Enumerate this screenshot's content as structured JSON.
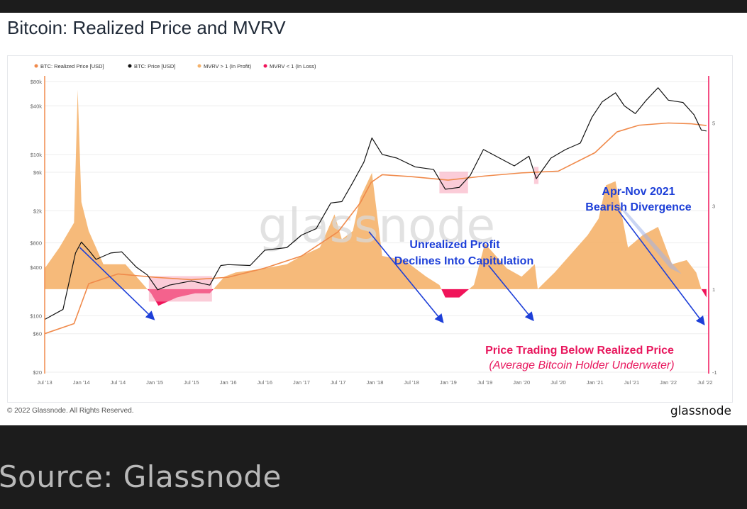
{
  "chart_data": {
    "type": "line",
    "title": "Bitcoin: Realized Price and MVRV",
    "legend": [
      {
        "name": "BTC: Realized Price [USD]",
        "color": "#f08a4b"
      },
      {
        "name": "BTC: Price [USD]",
        "color": "#111111"
      },
      {
        "name": "MVRV > 1 (In Profit)",
        "color": "#f5b26b"
      },
      {
        "name": "MVRV < 1 (In Loss)",
        "color": "#f0145a"
      }
    ],
    "legend_position": "top-left",
    "y_left_scale": "log",
    "y_left_ticks": [
      "$20",
      "$60",
      "$100",
      "$400",
      "$800",
      "$2k",
      "$6k",
      "$10k",
      "$40k",
      "$80k"
    ],
    "y_left_tick_values": [
      20,
      60,
      100,
      400,
      800,
      2000,
      6000,
      10000,
      40000,
      80000
    ],
    "y_right_ticks": [
      "-1",
      "1",
      "3",
      "5"
    ],
    "y_right_tick_values": [
      -1,
      1,
      3,
      5
    ],
    "y_right_range": [
      -1,
      6
    ],
    "x_ticks": [
      "Jul '13",
      "Jan '14",
      "Jul '14",
      "Jan '15",
      "Jul '15",
      "Jan '16",
      "Jul '16",
      "Jan '17",
      "Jul '17",
      "Jan '18",
      "Jul '18",
      "Jan '19",
      "Jul '19",
      "Jan '20",
      "Jul '20",
      "Jan '21",
      "Jul '21",
      "Jan '22",
      "Jul '22"
    ],
    "x_tick_values": [
      2013.5,
      2014.0,
      2014.5,
      2015.0,
      2015.5,
      2016.0,
      2016.5,
      2017.0,
      2017.5,
      2018.0,
      2018.5,
      2019.0,
      2019.5,
      2020.0,
      2020.5,
      2021.0,
      2021.5,
      2022.0,
      2022.5
    ],
    "x_range": [
      2013.5,
      2022.55
    ],
    "grid": true,
    "series": [
      {
        "name": "BTC: Price [USD]",
        "x": [
          2013.5,
          2013.75,
          2013.92,
          2014.0,
          2014.1,
          2014.2,
          2014.4,
          2014.55,
          2014.75,
          2014.9,
          2015.04,
          2015.2,
          2015.5,
          2015.75,
          2015.9,
          2016.0,
          2016.3,
          2016.5,
          2016.8,
          2017.0,
          2017.2,
          2017.4,
          2017.55,
          2017.7,
          2017.85,
          2017.96,
          2018.1,
          2018.3,
          2018.55,
          2018.8,
          2018.96,
          2019.15,
          2019.3,
          2019.48,
          2019.7,
          2019.9,
          2020.1,
          2020.2,
          2020.4,
          2020.6,
          2020.8,
          2020.96,
          2021.1,
          2021.28,
          2021.4,
          2021.55,
          2021.7,
          2021.86,
          2022.0,
          2022.2,
          2022.35,
          2022.45,
          2022.52
        ],
        "y": [
          90,
          120,
          600,
          820,
          650,
          500,
          600,
          620,
          400,
          320,
          210,
          240,
          270,
          240,
          420,
          430,
          420,
          650,
          700,
          1000,
          1200,
          2500,
          2600,
          4500,
          8000,
          16000,
          10000,
          9000,
          7000,
          6500,
          3700,
          3900,
          5500,
          11500,
          9000,
          7200,
          9500,
          5000,
          9000,
          11500,
          13800,
          29000,
          45000,
          58000,
          40000,
          32000,
          47000,
          67000,
          47000,
          44000,
          31000,
          20000,
          19500
        ]
      },
      {
        "name": "BTC: Realized Price [USD]",
        "x": [
          2013.5,
          2013.9,
          2014.1,
          2014.5,
          2015.0,
          2015.5,
          2016.0,
          2016.5,
          2017.0,
          2017.5,
          2017.8,
          2017.95,
          2018.1,
          2018.5,
          2019.0,
          2019.5,
          2020.0,
          2020.5,
          2021.0,
          2021.3,
          2021.6,
          2022.0,
          2022.3,
          2022.52
        ],
        "y": [
          60,
          80,
          250,
          330,
          300,
          280,
          300,
          390,
          550,
          1100,
          2500,
          4500,
          5600,
          5300,
          4800,
          5400,
          5900,
          6200,
          10500,
          19000,
          23000,
          24500,
          24000,
          22800
        ]
      },
      {
        "name": "MVRV",
        "x": [
          2013.5,
          2013.7,
          2013.9,
          2013.95,
          2014.0,
          2014.1,
          2014.3,
          2014.6,
          2014.8,
          2014.95,
          2015.05,
          2015.3,
          2015.55,
          2015.75,
          2015.95,
          2016.1,
          2016.5,
          2016.8,
          2017.0,
          2017.25,
          2017.45,
          2017.55,
          2017.7,
          2017.8,
          2017.96,
          2018.1,
          2018.4,
          2018.7,
          2018.88,
          2018.96,
          2019.15,
          2019.35,
          2019.5,
          2019.65,
          2019.8,
          2020.0,
          2020.18,
          2020.22,
          2020.45,
          2020.7,
          2020.9,
          2021.05,
          2021.15,
          2021.28,
          2021.45,
          2021.65,
          2021.86,
          2022.05,
          2022.25,
          2022.38,
          2022.45,
          2022.52
        ],
        "y": [
          1.5,
          2.0,
          2.6,
          5.8,
          3.1,
          2.4,
          1.6,
          1.6,
          1.2,
          0.9,
          0.6,
          0.8,
          0.9,
          0.9,
          1.3,
          1.4,
          1.5,
          1.6,
          1.8,
          2.0,
          2.8,
          2.2,
          2.4,
          3.2,
          3.8,
          1.8,
          1.7,
          1.3,
          1.1,
          0.8,
          0.8,
          1.1,
          2.1,
          1.8,
          1.5,
          1.3,
          1.6,
          1.0,
          1.4,
          1.9,
          2.3,
          2.7,
          3.5,
          3.6,
          2.0,
          2.3,
          2.5,
          1.6,
          1.7,
          1.4,
          1.0,
          0.8
        ]
      }
    ],
    "annotations": [
      {
        "text": "Unrealized Profit",
        "color": "#1d3fd8"
      },
      {
        "text": "Declines Into Capitulation",
        "color": "#1d3fd8"
      },
      {
        "text": "Apr-Nov 2021",
        "color": "#1d3fd8"
      },
      {
        "text": "Bearish Divergence",
        "color": "#1d3fd8"
      },
      {
        "text": "Price Trading Below Realized Price",
        "color": "#e8175d"
      },
      {
        "text": "(Average Bitcoin Holder Underwater)",
        "color": "#e8175d"
      }
    ],
    "watermark": "glassnode"
  },
  "footer": {
    "copyright": "© 2022 Glassnode. All Rights Reserved.",
    "brand": "glassnode"
  },
  "caption": "Source: Glassnode",
  "colors": {
    "price_line": "#111111",
    "realized_line": "#f08a4b",
    "mvrv_profit": "#f5b26b",
    "mvrv_loss": "#f0145a",
    "annotation_blue": "#1d3fd8",
    "annotation_pink": "#e8175d",
    "left_axis": "#f08a4b",
    "right_axis": "#f0145a"
  }
}
